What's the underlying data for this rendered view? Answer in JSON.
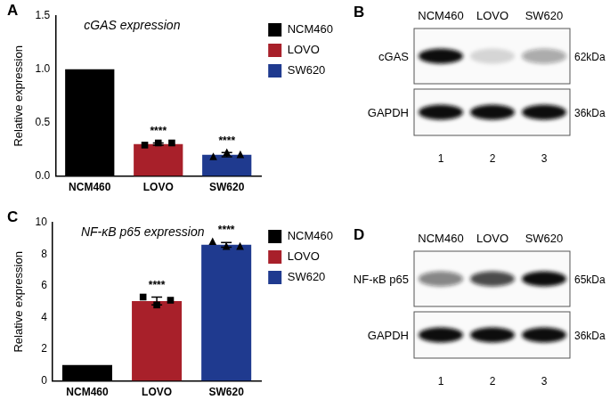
{
  "chart_data": [
    {
      "type": "bar",
      "panel_label": "A",
      "title": "cGAS expression",
      "ylabel": "Relative expression",
      "categories": [
        "NCM460",
        "LOVO",
        "SW620"
      ],
      "series": [
        {
          "name": "NCM460",
          "color": "#000000",
          "values": [
            1.0,
            null,
            null
          ]
        },
        {
          "name": "LOVO",
          "color": "#a8202a",
          "values": [
            null,
            0.3,
            null
          ],
          "marker": "square",
          "errors": [
            null,
            0.01,
            null
          ],
          "points": [
            null,
            [
              0.29,
              0.31,
              0.31
            ],
            null
          ],
          "annotations": [
            null,
            "****",
            null
          ]
        },
        {
          "name": "SW620",
          "color": "#1f3a8f",
          "values": [
            null,
            null,
            0.2
          ],
          "marker": "triangle",
          "errors": [
            null,
            null,
            0.02
          ],
          "points": [
            null,
            null,
            [
              0.18,
              0.22,
              0.2
            ]
          ],
          "annotations": [
            null,
            null,
            "****"
          ]
        }
      ],
      "ylim": [
        0,
        1.5
      ],
      "yticks": [
        {
          "value": 0,
          "label": "0.0"
        },
        {
          "value": 0.5,
          "label": "0.5"
        },
        {
          "value": 1,
          "label": "1.0"
        },
        {
          "value": 1.5,
          "label": "1.5"
        }
      ],
      "grid": false,
      "legend": "upper right"
    },
    {
      "type": "bar",
      "panel_label": "C",
      "title": "NF-κB p65 expression",
      "ylabel": "Relative expression",
      "categories": [
        "NCM460",
        "LOVO",
        "SW620"
      ],
      "series": [
        {
          "name": "NCM460",
          "color": "#000000",
          "values": [
            1.0,
            null,
            null
          ]
        },
        {
          "name": "LOVO",
          "color": "#a8202a",
          "values": [
            null,
            5.05,
            null
          ],
          "marker": "square",
          "errors": [
            null,
            0.25,
            null
          ],
          "points": [
            null,
            [
              5.3,
              4.8,
              5.1
            ],
            null
          ],
          "annotations": [
            null,
            "****",
            null
          ]
        },
        {
          "name": "SW620",
          "color": "#1f3a8f",
          "values": [
            null,
            null,
            8.6
          ],
          "marker": "triangle",
          "errors": [
            null,
            null,
            0.15
          ],
          "points": [
            null,
            null,
            [
              8.8,
              8.5,
              8.5
            ]
          ],
          "annotations": [
            null,
            null,
            "****"
          ]
        }
      ],
      "ylim": [
        0,
        10
      ],
      "yticks": [
        0,
        2,
        4,
        6,
        8,
        10
      ],
      "grid": false,
      "legend": "upper right"
    }
  ],
  "blots": [
    {
      "panel_label": "B",
      "lanes": [
        "NCM460",
        "LOVO",
        "SW620"
      ],
      "lane_numbers": [
        1,
        2,
        3
      ],
      "rows": [
        {
          "label": "cGAS",
          "size": "62kDa",
          "intensity": [
            1.0,
            0.15,
            0.35
          ]
        },
        {
          "label": "GAPDH",
          "size": "36kDa",
          "intensity": [
            1.0,
            1.0,
            1.0
          ]
        }
      ]
    },
    {
      "panel_label": "D",
      "lanes": [
        "NCM460",
        "LOVO",
        "SW620"
      ],
      "lane_numbers": [
        1,
        2,
        3
      ],
      "rows": [
        {
          "label": "NF-κB p65",
          "size": "65kDa",
          "intensity": [
            0.5,
            0.75,
            1.0
          ]
        },
        {
          "label": "GAPDH",
          "size": "36kDa",
          "intensity": [
            1.0,
            1.0,
            1.0
          ]
        }
      ]
    }
  ]
}
